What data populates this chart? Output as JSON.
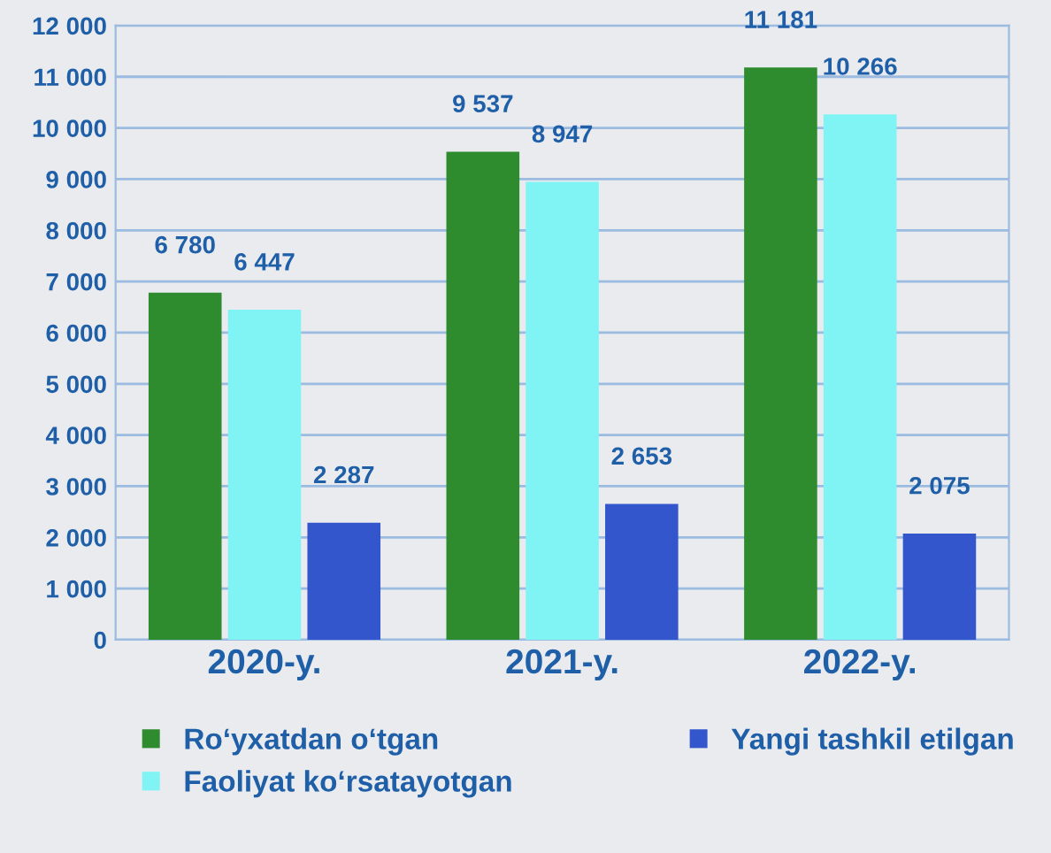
{
  "chart_data": {
    "type": "bar",
    "categories": [
      "2020-y.",
      "2021-y.",
      "2022-y."
    ],
    "series": [
      {
        "name": "Ro‘yxatdan o‘tgan",
        "color": "#2e8b2e",
        "values": [
          6780,
          9537,
          11181
        ],
        "value_labels": [
          "6 780",
          "9 537",
          "11 181"
        ]
      },
      {
        "name": "Faoliyat ko‘rsatayotgan",
        "color": "#80f4f4",
        "values": [
          6447,
          8947,
          10266
        ],
        "value_labels": [
          "6 447",
          "8 947",
          "10 266"
        ]
      },
      {
        "name": "Yangi tashkil etilgan",
        "color": "#3456cc",
        "values": [
          2287,
          2653,
          2075
        ],
        "value_labels": [
          "2 287",
          "2 653",
          "2 075"
        ]
      }
    ],
    "ylim": [
      0,
      12000
    ],
    "yticks": [
      0,
      {
        "value": 1000,
        "label": "1 000"
      },
      {
        "value": 2000,
        "label": "2 000"
      },
      {
        "value": 3000,
        "label": "3 000"
      },
      {
        "value": 4000,
        "label": "4 000"
      },
      {
        "value": 5000,
        "label": "5 000"
      },
      {
        "value": 6000,
        "label": "6 000"
      },
      {
        "value": 7000,
        "label": "7 000"
      },
      {
        "value": 8000,
        "label": "8 000"
      },
      {
        "value": 9000,
        "label": "9 000"
      },
      {
        "value": 10000,
        "label": "10 000"
      },
      {
        "value": 11000,
        "label": "11 000"
      },
      {
        "value": 12000,
        "label": "12 000"
      }
    ],
    "grid": "y",
    "legend": "bottom"
  }
}
